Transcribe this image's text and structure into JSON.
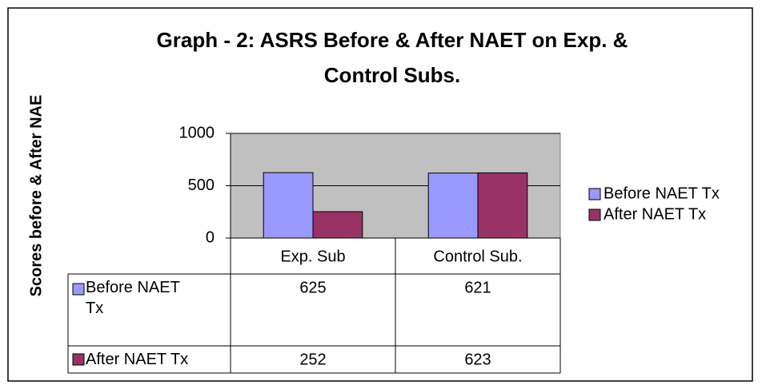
{
  "chart_data": {
    "type": "bar",
    "title_lines": [
      "Graph - 2: ASRS Before & After NAET on Exp. &",
      "Control Subs."
    ],
    "y_label": "Scores before & After NAE",
    "categories": [
      "Exp. Sub",
      "Control Sub."
    ],
    "series": [
      {
        "name": "Before NAET Tx",
        "color": "#9999ff",
        "values": [
          625,
          621
        ]
      },
      {
        "name": "After NAET Tx",
        "color": "#993366",
        "values": [
          252,
          623
        ]
      }
    ],
    "ylim": [
      0,
      1000
    ],
    "yticks": [
      0,
      500,
      1000
    ],
    "grid": true,
    "legend": "right",
    "data_table": true
  }
}
